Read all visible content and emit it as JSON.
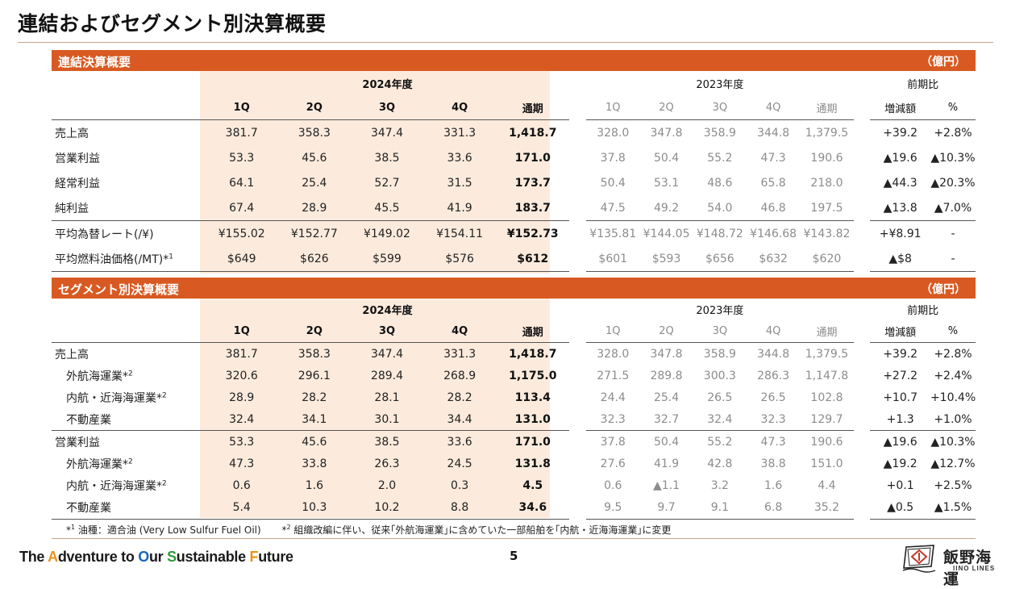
{
  "title": "連結およびセグメント別決算概要",
  "section1": {
    "title": "連結決算概要",
    "unit": "（億円）",
    "header": {
      "fy2024": "2024年度",
      "fy2023": "2023年度",
      "yoy": "前期比",
      "q1": "1Q",
      "q2": "2Q",
      "q3": "3Q",
      "q4": "4Q",
      "full": "通期",
      "diff": "増減額",
      "pct": "%"
    },
    "rows": [
      {
        "label": "売上高",
        "v": [
          "381.7",
          "358.3",
          "347.4",
          "331.3",
          "1,418.7",
          "328.0",
          "347.8",
          "358.9",
          "344.8",
          "1,379.5",
          "+39.2",
          "+2.8%"
        ]
      },
      {
        "label": "営業利益",
        "v": [
          "53.3",
          "45.6",
          "38.5",
          "33.6",
          "171.0",
          "37.8",
          "50.4",
          "55.2",
          "47.3",
          "190.6",
          "▲19.6",
          "▲10.3%"
        ]
      },
      {
        "label": "経常利益",
        "v": [
          "64.1",
          "25.4",
          "52.7",
          "31.5",
          "173.7",
          "50.4",
          "53.1",
          "48.6",
          "65.8",
          "218.0",
          "▲44.3",
          "▲20.3%"
        ]
      },
      {
        "label": "純利益",
        "v": [
          "67.4",
          "28.9",
          "45.5",
          "41.9",
          "183.7",
          "47.5",
          "49.2",
          "54.0",
          "46.8",
          "197.5",
          "▲13.8",
          "▲7.0%"
        ]
      },
      {
        "label": "平均為替レート(/¥)",
        "v": [
          "¥155.02",
          "¥152.77",
          "¥149.02",
          "¥154.11",
          "¥152.73",
          "¥135.81",
          "¥144.05",
          "¥148.72",
          "¥146.68",
          "¥143.82",
          "+¥8.91",
          "-"
        ]
      },
      {
        "label": "平均燃料油価格(/MT)*",
        "sup": "1",
        "v": [
          "$649",
          "$626",
          "$599",
          "$576",
          "$612",
          "$601",
          "$593",
          "$656",
          "$632",
          "$620",
          "▲$8",
          "-"
        ]
      }
    ]
  },
  "section2": {
    "title": "セグメント別決算概要",
    "unit": "（億円）",
    "header": {
      "fy2024": "2024年度",
      "fy2023": "2023年度",
      "yoy": "前期比",
      "q1": "1Q",
      "q2": "2Q",
      "q3": "3Q",
      "q4": "4Q",
      "full": "通期",
      "diff": "増減額",
      "pct": "%"
    },
    "rows": [
      {
        "label": "売上高",
        "v": [
          "381.7",
          "358.3",
          "347.4",
          "331.3",
          "1,418.7",
          "328.0",
          "347.8",
          "358.9",
          "344.8",
          "1,379.5",
          "+39.2",
          "+2.8%"
        ]
      },
      {
        "label": "外航海運業*",
        "sup": "2",
        "v": [
          "320.6",
          "296.1",
          "289.4",
          "268.9",
          "1,175.0",
          "271.5",
          "289.8",
          "300.3",
          "286.3",
          "1,147.8",
          "+27.2",
          "+2.4%"
        ]
      },
      {
        "label": "内航・近海海運業*",
        "sup": "2",
        "v": [
          "28.9",
          "28.2",
          "28.1",
          "28.2",
          "113.4",
          "24.4",
          "25.4",
          "26.5",
          "26.5",
          "102.8",
          "+10.7",
          "+10.4%"
        ]
      },
      {
        "label": "不動産業",
        "v": [
          "32.4",
          "34.1",
          "30.1",
          "34.4",
          "131.0",
          "32.3",
          "32.7",
          "32.4",
          "32.3",
          "129.7",
          "+1.3",
          "+1.0%"
        ]
      },
      {
        "label": "営業利益",
        "v": [
          "53.3",
          "45.6",
          "38.5",
          "33.6",
          "171.0",
          "37.8",
          "50.4",
          "55.2",
          "47.3",
          "190.6",
          "▲19.6",
          "▲10.3%"
        ]
      },
      {
        "label": "外航海運業*",
        "sup": "2",
        "v": [
          "47.3",
          "33.8",
          "26.3",
          "24.5",
          "131.8",
          "27.6",
          "41.9",
          "42.8",
          "38.8",
          "151.0",
          "▲19.2",
          "▲12.7%"
        ]
      },
      {
        "label": "内航・近海海運業*",
        "sup": "2",
        "v": [
          "0.6",
          "1.6",
          "2.0",
          "0.3",
          "4.5",
          "0.6",
          "▲1.1",
          "3.2",
          "1.6",
          "4.4",
          "+0.1",
          "+2.5%"
        ]
      },
      {
        "label": "不動産業",
        "v": [
          "5.4",
          "10.3",
          "10.2",
          "8.8",
          "34.6",
          "9.5",
          "9.7",
          "9.1",
          "6.8",
          "35.2",
          "▲0.5",
          "▲1.5%"
        ]
      }
    ]
  },
  "footnotes": {
    "n1_mark": "*",
    "n1_sup": "1",
    "n1_text": " 油種：適合油 (Very Low Sulfur Fuel Oil)",
    "n2_mark": "*",
    "n2_sup": "2",
    "n2_text": " 組織改編に伴い、従来｢外航海運業｣に含めていた一部船舶を｢内航・近海海運業｣に変更"
  },
  "footer": {
    "slogan": [
      {
        "t": "The ",
        "c": "c0"
      },
      {
        "t": "A",
        "c": "c1"
      },
      {
        "t": "dventure to ",
        "c": "c0"
      },
      {
        "t": "O",
        "c": "c2"
      },
      {
        "t": "ur ",
        "c": "c0"
      },
      {
        "t": "S",
        "c": "c3"
      },
      {
        "t": "ustainable ",
        "c": "c0"
      },
      {
        "t": "F",
        "c": "c4"
      },
      {
        "t": "uture",
        "c": "c0"
      }
    ],
    "page": "5",
    "company_name": "飯野海運",
    "company_en": "IINO LINES",
    "logo_icon": "iino-lines-logo"
  }
}
